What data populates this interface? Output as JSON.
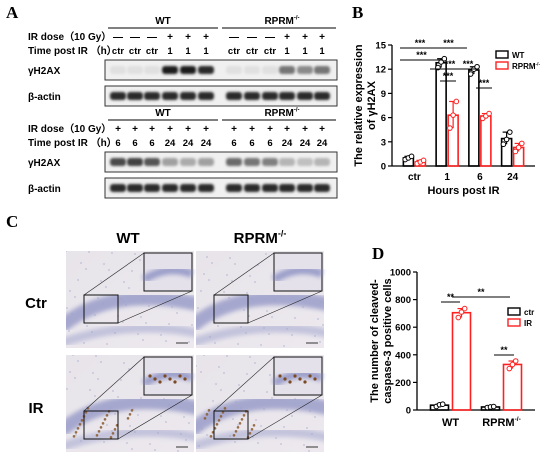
{
  "panels": {
    "a": "A",
    "b": "B",
    "c": "C",
    "d": "D"
  },
  "panel_a": {
    "top": {
      "groups": [
        "WT",
        "RPRM-/-"
      ],
      "row_labels": {
        "dose": "IR dose（10 Gy）",
        "time": "Time post IR （h）"
      },
      "dose_marks": [
        "—",
        "—",
        "—",
        "+",
        "+",
        "+",
        "—",
        "—",
        "—",
        "+",
        "+",
        "+"
      ],
      "time_marks": [
        "ctr",
        "ctr",
        "ctr",
        "1",
        "1",
        "1",
        "ctr",
        "ctr",
        "ctr",
        "1",
        "1",
        "1"
      ],
      "blot_labels": [
        "γH2AX",
        "β-actin"
      ]
    },
    "bottom": {
      "groups": [
        "WT",
        "RPRM-/-"
      ],
      "row_labels": {
        "dose": "IR dose（10 Gy）",
        "time": "Time post IR （h）"
      },
      "dose_marks": [
        "+",
        "+",
        "+",
        "+",
        "+",
        "+",
        "+",
        "+",
        "+",
        "+",
        "+",
        "+"
      ],
      "time_marks": [
        "6",
        "6",
        "6",
        "24",
        "24",
        "24",
        "6",
        "6",
        "6",
        "24",
        "24",
        "24"
      ],
      "blot_labels": [
        "γH2AX",
        "β-actin"
      ]
    }
  },
  "panel_c": {
    "columns": [
      "WT",
      "RPRM-/-"
    ],
    "rows": [
      "Ctr",
      "IR"
    ]
  },
  "chart_data": [
    {
      "type": "bar",
      "panel": "B",
      "categories": [
        "ctr",
        "1",
        "6",
        "24"
      ],
      "xlabel": "Hours post IR",
      "ylabel": "The relative expression of γH2AX",
      "ylim": [
        0,
        15
      ],
      "yticks": [
        0,
        3,
        6,
        9,
        12,
        15
      ],
      "legend": "top-right",
      "series": [
        {
          "name": "WT",
          "color": "#000000",
          "values": [
            1.0,
            12.8,
            11.9,
            3.4
          ],
          "points": [
            [
              0.8,
              1.0,
              1.2
            ],
            [
              12.2,
              12.9,
              13.3
            ],
            [
              11.4,
              12.0,
              12.3
            ],
            [
              2.7,
              3.3,
              4.2
            ]
          ]
        },
        {
          "name": "RPRM-/-",
          "color": "#ff2020",
          "values": [
            0.5,
            6.3,
            6.2,
            2.3
          ],
          "points": [
            [
              0.3,
              0.5,
              0.7
            ],
            [
              4.7,
              6.3,
              8.0
            ],
            [
              5.9,
              6.2,
              6.5
            ],
            [
              1.8,
              2.3,
              2.8
            ]
          ]
        }
      ],
      "significance": [
        "***",
        "***",
        "***",
        "***",
        "***",
        "***",
        "***"
      ]
    },
    {
      "type": "bar",
      "panel": "D",
      "categories": [
        "WT",
        "RPRM-/-"
      ],
      "ylabel": "The number of cleaved-caspase-3 positive cells",
      "ylim": [
        0,
        1000
      ],
      "yticks": [
        0,
        200,
        400,
        600,
        800,
        1000
      ],
      "legend": "top-right",
      "series": [
        {
          "name": "ctr",
          "color": "#000000",
          "values": [
            35,
            22
          ],
          "points": [
            [
              25,
              38,
              42
            ],
            [
              18,
              22,
              25
            ]
          ]
        },
        {
          "name": "IR",
          "color": "#ff2020",
          "values": [
            705,
            330
          ],
          "points": [
            [
              670,
              710,
              735
            ],
            [
              300,
              330,
              355
            ]
          ]
        }
      ],
      "significance": [
        "**",
        "**",
        "**"
      ]
    }
  ]
}
